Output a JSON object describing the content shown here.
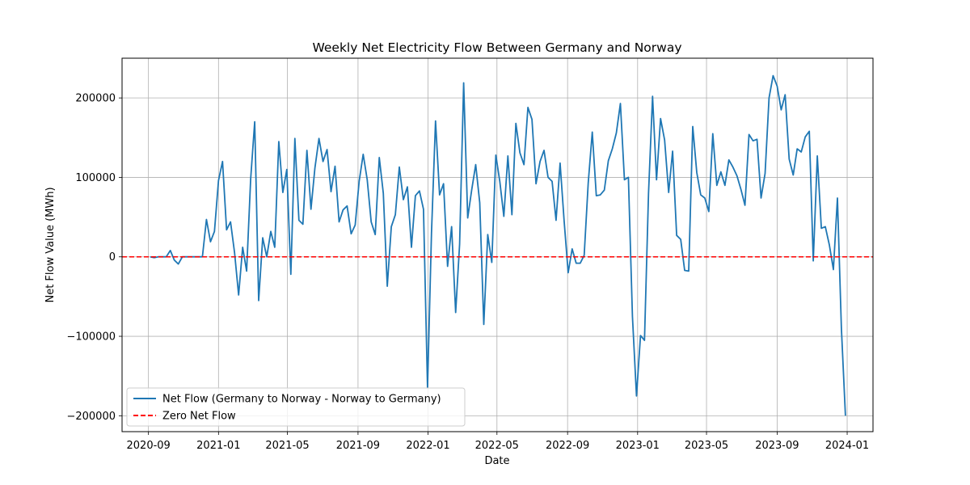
{
  "chart_data": {
    "type": "line",
    "title": "Weekly Net Electricity Flow Between Germany and Norway",
    "xlabel": "Date",
    "ylabel": "Net Flow Value (MWh)",
    "xlim": [
      "2020-07-17",
      "2024-02-15"
    ],
    "ylim": [
      -220000,
      250000
    ],
    "grid": true,
    "legend_position": "lower-left",
    "x_ticks": [
      "2020-09-01",
      "2021-01-01",
      "2021-05-01",
      "2021-09-01",
      "2022-01-01",
      "2022-05-01",
      "2022-09-01",
      "2023-01-01",
      "2023-05-01",
      "2023-09-01",
      "2024-01-01"
    ],
    "x_tick_labels": [
      "2020-09",
      "2021-01",
      "2021-05",
      "2021-09",
      "2022-01",
      "2022-05",
      "2022-09",
      "2023-01",
      "2023-05",
      "2023-09",
      "2024-01"
    ],
    "y_ticks": [
      -200000,
      -100000,
      0,
      100000,
      200000
    ],
    "y_tick_labels": [
      "−200000",
      "−100000",
      "0",
      "100000",
      "200000"
    ],
    "series": [
      {
        "name": "Net Flow (Germany to Norway - Norway to Germany)",
        "color": "#1f77b4",
        "style": "solid",
        "points": [
          [
            "2020-09-04",
            0
          ],
          [
            "2020-09-11",
            -1000
          ],
          [
            "2020-09-18",
            0
          ],
          [
            "2020-09-25",
            0
          ],
          [
            "2020-10-02",
            0
          ],
          [
            "2020-10-09",
            8000
          ],
          [
            "2020-10-16",
            -4000
          ],
          [
            "2020-10-23",
            -9000
          ],
          [
            "2020-10-30",
            0
          ],
          [
            "2020-11-06",
            0
          ],
          [
            "2020-11-13",
            0
          ],
          [
            "2020-11-20",
            0
          ],
          [
            "2020-11-27",
            0
          ],
          [
            "2020-12-04",
            0
          ],
          [
            "2020-12-11",
            47000
          ],
          [
            "2020-12-18",
            19000
          ],
          [
            "2020-12-25",
            32000
          ],
          [
            "2021-01-01",
            96000
          ],
          [
            "2021-01-08",
            120000
          ],
          [
            "2021-01-15",
            34000
          ],
          [
            "2021-01-22",
            44000
          ],
          [
            "2021-01-29",
            5000
          ],
          [
            "2021-02-05",
            -48000
          ],
          [
            "2021-02-12",
            12000
          ],
          [
            "2021-02-19",
            -18000
          ],
          [
            "2021-02-26",
            98000
          ],
          [
            "2021-03-05",
            170000
          ],
          [
            "2021-03-12",
            -55000
          ],
          [
            "2021-03-19",
            24000
          ],
          [
            "2021-03-26",
            0
          ],
          [
            "2021-04-02",
            32000
          ],
          [
            "2021-04-09",
            12000
          ],
          [
            "2021-04-16",
            145000
          ],
          [
            "2021-04-23",
            81000
          ],
          [
            "2021-04-30",
            110000
          ],
          [
            "2021-05-07",
            -22000
          ],
          [
            "2021-05-14",
            149000
          ],
          [
            "2021-05-21",
            46000
          ],
          [
            "2021-05-28",
            41000
          ],
          [
            "2021-06-04",
            134000
          ],
          [
            "2021-06-11",
            60000
          ],
          [
            "2021-06-18",
            112000
          ],
          [
            "2021-06-25",
            149000
          ],
          [
            "2021-07-02",
            120000
          ],
          [
            "2021-07-09",
            135000
          ],
          [
            "2021-07-16",
            82000
          ],
          [
            "2021-07-23",
            114000
          ],
          [
            "2021-07-30",
            44000
          ],
          [
            "2021-08-06",
            59000
          ],
          [
            "2021-08-13",
            64000
          ],
          [
            "2021-08-20",
            29000
          ],
          [
            "2021-08-27",
            40000
          ],
          [
            "2021-09-03",
            95000
          ],
          [
            "2021-09-10",
            129000
          ],
          [
            "2021-09-17",
            97000
          ],
          [
            "2021-09-24",
            44000
          ],
          [
            "2021-10-01",
            28000
          ],
          [
            "2021-10-08",
            125000
          ],
          [
            "2021-10-15",
            80000
          ],
          [
            "2021-10-22",
            -37000
          ],
          [
            "2021-10-29",
            38000
          ],
          [
            "2021-11-05",
            53000
          ],
          [
            "2021-11-12",
            113000
          ],
          [
            "2021-11-19",
            72000
          ],
          [
            "2021-11-26",
            88000
          ],
          [
            "2021-12-03",
            12000
          ],
          [
            "2021-12-10",
            77000
          ],
          [
            "2021-12-17",
            83000
          ],
          [
            "2021-12-24",
            60000
          ],
          [
            "2021-12-31",
            -165000
          ],
          [
            "2022-01-07",
            30000
          ],
          [
            "2022-01-14",
            171000
          ],
          [
            "2022-01-21",
            78000
          ],
          [
            "2022-01-28",
            92000
          ],
          [
            "2022-02-04",
            -12000
          ],
          [
            "2022-02-11",
            38000
          ],
          [
            "2022-02-18",
            -70000
          ],
          [
            "2022-02-25",
            16000
          ],
          [
            "2022-03-04",
            219000
          ],
          [
            "2022-03-11",
            49000
          ],
          [
            "2022-03-18",
            84000
          ],
          [
            "2022-03-25",
            116000
          ],
          [
            "2022-04-01",
            68000
          ],
          [
            "2022-04-08",
            -85000
          ],
          [
            "2022-04-15",
            28000
          ],
          [
            "2022-04-22",
            -7000
          ],
          [
            "2022-04-29",
            128000
          ],
          [
            "2022-05-06",
            95000
          ],
          [
            "2022-05-13",
            51000
          ],
          [
            "2022-05-20",
            127000
          ],
          [
            "2022-05-27",
            53000
          ],
          [
            "2022-06-03",
            168000
          ],
          [
            "2022-06-10",
            131000
          ],
          [
            "2022-06-17",
            116000
          ],
          [
            "2022-06-24",
            188000
          ],
          [
            "2022-07-01",
            173000
          ],
          [
            "2022-07-08",
            92000
          ],
          [
            "2022-07-15",
            120000
          ],
          [
            "2022-07-22",
            134000
          ],
          [
            "2022-07-29",
            100000
          ],
          [
            "2022-08-05",
            95000
          ],
          [
            "2022-08-12",
            46000
          ],
          [
            "2022-08-19",
            118000
          ],
          [
            "2022-08-26",
            45000
          ],
          [
            "2022-09-02",
            -20000
          ],
          [
            "2022-09-09",
            10000
          ],
          [
            "2022-09-16",
            -8000
          ],
          [
            "2022-09-23",
            -8000
          ],
          [
            "2022-09-30",
            2000
          ],
          [
            "2022-10-07",
            93000
          ],
          [
            "2022-10-14",
            157000
          ],
          [
            "2022-10-21",
            77000
          ],
          [
            "2022-10-28",
            78000
          ],
          [
            "2022-11-04",
            84000
          ],
          [
            "2022-11-11",
            121000
          ],
          [
            "2022-11-18",
            136000
          ],
          [
            "2022-11-25",
            156000
          ],
          [
            "2022-12-02",
            193000
          ],
          [
            "2022-12-09",
            97000
          ],
          [
            "2022-12-16",
            100000
          ],
          [
            "2022-12-23",
            -75000
          ],
          [
            "2022-12-30",
            -175000
          ],
          [
            "2023-01-06",
            -99000
          ],
          [
            "2023-01-13",
            -105000
          ],
          [
            "2023-01-20",
            80000
          ],
          [
            "2023-01-27",
            202000
          ],
          [
            "2023-02-03",
            97000
          ],
          [
            "2023-02-10",
            174000
          ],
          [
            "2023-02-17",
            147000
          ],
          [
            "2023-02-24",
            81000
          ],
          [
            "2023-03-03",
            133000
          ],
          [
            "2023-03-10",
            27000
          ],
          [
            "2023-03-17",
            22000
          ],
          [
            "2023-03-24",
            -17000
          ],
          [
            "2023-03-31",
            -18000
          ],
          [
            "2023-04-07",
            164000
          ],
          [
            "2023-04-14",
            106000
          ],
          [
            "2023-04-21",
            78000
          ],
          [
            "2023-04-28",
            74000
          ],
          [
            "2023-05-05",
            57000
          ],
          [
            "2023-05-12",
            155000
          ],
          [
            "2023-05-19",
            90000
          ],
          [
            "2023-05-26",
            107000
          ],
          [
            "2023-06-02",
            90000
          ],
          [
            "2023-06-09",
            122000
          ],
          [
            "2023-06-16",
            113000
          ],
          [
            "2023-06-23",
            102000
          ],
          [
            "2023-06-30",
            85000
          ],
          [
            "2023-07-07",
            65000
          ],
          [
            "2023-07-14",
            154000
          ],
          [
            "2023-07-21",
            146000
          ],
          [
            "2023-07-28",
            148000
          ],
          [
            "2023-08-04",
            74000
          ],
          [
            "2023-08-11",
            105000
          ],
          [
            "2023-08-18",
            200000
          ],
          [
            "2023-08-25",
            228000
          ],
          [
            "2023-09-01",
            215000
          ],
          [
            "2023-09-08",
            185000
          ],
          [
            "2023-09-15",
            204000
          ],
          [
            "2023-09-22",
            123000
          ],
          [
            "2023-09-29",
            103000
          ],
          [
            "2023-10-06",
            136000
          ],
          [
            "2023-10-13",
            132000
          ],
          [
            "2023-10-20",
            151000
          ],
          [
            "2023-10-27",
            158000
          ],
          [
            "2023-11-03",
            -5000
          ],
          [
            "2023-11-10",
            127000
          ],
          [
            "2023-11-17",
            36000
          ],
          [
            "2023-11-24",
            38000
          ],
          [
            "2023-12-01",
            15000
          ],
          [
            "2023-12-08",
            -16000
          ],
          [
            "2023-12-15",
            74000
          ],
          [
            "2023-12-22",
            -90000
          ],
          [
            "2023-12-29",
            -200000
          ]
        ]
      },
      {
        "name": "Zero Net Flow",
        "color": "#ff0000",
        "style": "dashed",
        "y": 0
      }
    ]
  }
}
